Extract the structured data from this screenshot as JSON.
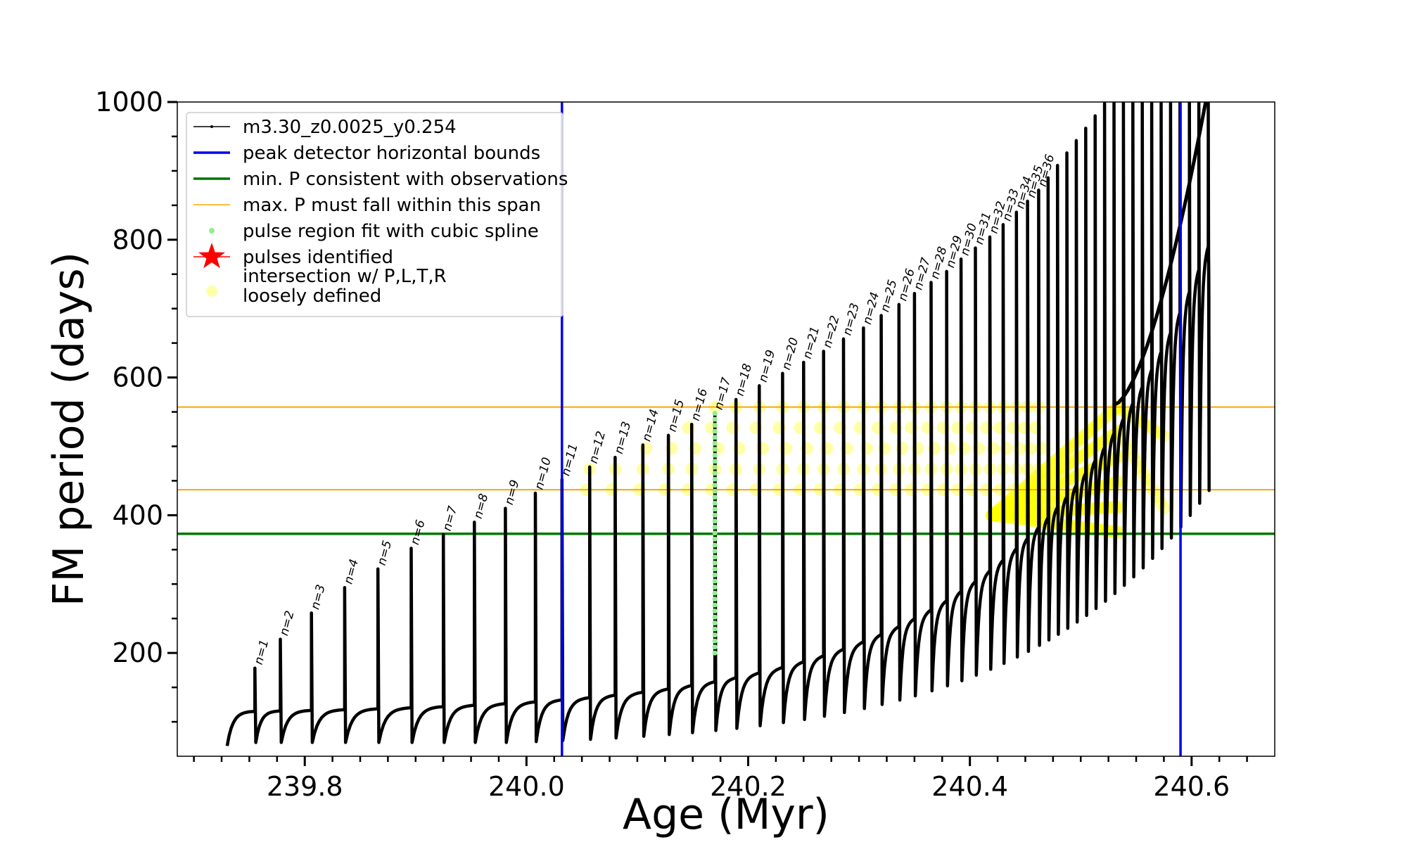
{
  "chart_data": {
    "type": "line",
    "xlabel": "Age (Myr)",
    "ylabel": "FM period (days)",
    "xlim": [
      239.685,
      240.675
    ],
    "ylim": [
      50,
      1000
    ],
    "xticks": [
      {
        "value": 239.8,
        "label": "239.8"
      },
      {
        "value": 240.0,
        "label": "240.0"
      },
      {
        "value": 240.2,
        "label": "240.2"
      },
      {
        "value": 240.4,
        "label": "240.4"
      },
      {
        "value": 240.6,
        "label": "240.6"
      }
    ],
    "yticks": [
      {
        "value": 200,
        "label": "200"
      },
      {
        "value": 400,
        "label": "400"
      },
      {
        "value": 600,
        "label": "600"
      },
      {
        "value": 800,
        "label": "800"
      },
      {
        "value": 1000,
        "label": "1000"
      }
    ],
    "grid": false,
    "legend_position": "top-left",
    "legend": [
      {
        "key": "track",
        "label": "m3.30_z0.0025_y0.254"
      },
      {
        "key": "bounds",
        "label": "peak detector horizontal bounds"
      },
      {
        "key": "minp",
        "label": "min. P consistent with observations"
      },
      {
        "key": "maxp",
        "label": "max. P must fall within this span"
      },
      {
        "key": "spline",
        "label": "pulse region fit with cubic spline"
      },
      {
        "key": "pulses",
        "label": "pulses identified"
      },
      {
        "key": "inter",
        "label_lines": [
          "intersection w/ P,L,T,R",
          "loosely defined"
        ]
      }
    ],
    "series": [
      {
        "name": "m3.30_z0.0025_y0.254",
        "color": "#000000",
        "pulse_ages": [
          239.755,
          239.778,
          239.806,
          239.836,
          239.866,
          239.896,
          239.925,
          239.953,
          239.981,
          240.008,
          240.032,
          240.057,
          240.08,
          240.105,
          240.128,
          240.149,
          240.17,
          240.189,
          240.21,
          240.231,
          240.25,
          240.268,
          240.286,
          240.304,
          240.32,
          240.336,
          240.35,
          240.365,
          240.379,
          240.392,
          240.405,
          240.418,
          240.43,
          240.442,
          240.452,
          240.462
        ],
        "pulse_peaks": [
          178,
          220,
          258,
          295,
          322,
          352,
          372,
          390,
          410,
          432,
          452,
          470,
          484,
          502,
          516,
          532,
          548,
          568,
          588,
          606,
          622,
          638,
          656,
          672,
          690,
          706,
          722,
          738,
          754,
          772,
          788,
          804,
          822,
          840,
          856,
          872
        ]
      }
    ],
    "pulse_labels": [
      "n=1",
      "n=2",
      "n=3",
      "n=4",
      "n=5",
      "n=6",
      "n=7",
      "n=8",
      "n=9",
      "n=10",
      "n=11",
      "n=12",
      "n=13",
      "n=14",
      "n=15",
      "n=16",
      "n=17",
      "n=18",
      "n=19",
      "n=20",
      "n=21",
      "n=22",
      "n=23",
      "n=24",
      "n=25",
      "n=26",
      "n=27",
      "n=28",
      "n=29",
      "n=30",
      "n=31",
      "n=32",
      "n=33",
      "n=34",
      "n=35",
      "n=36"
    ],
    "peak_detector_bounds_x": [
      240.032,
      240.59
    ],
    "min_period": 373,
    "max_period_span": [
      437,
      557
    ],
    "spline_fit_pulse_age": 240.17,
    "spline_fit_range": [
      200,
      548
    ],
    "colors": {
      "track": "#000000",
      "bounds": "#0000ee",
      "minp": "#007700",
      "maxp": "#ffa500",
      "spline": "#90ee90",
      "pulses": "#ff0000",
      "inter": "#ffff00"
    }
  }
}
